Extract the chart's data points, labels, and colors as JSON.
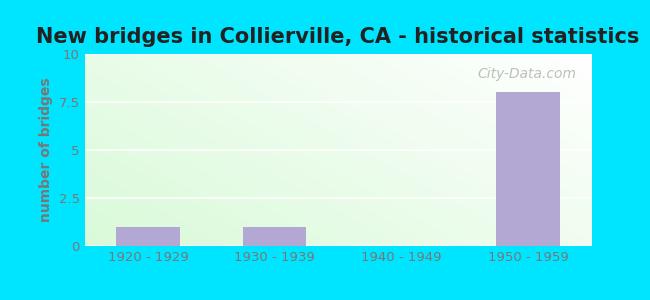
{
  "title": "New bridges in Collierville, CA - historical statistics",
  "categories": [
    "1920 - 1929",
    "1930 - 1939",
    "1940 - 1949",
    "1950 - 1959"
  ],
  "values": [
    1,
    1,
    0,
    8
  ],
  "bar_color": "#b3a8d4",
  "ylabel": "number of bridges",
  "ylim": [
    0,
    10
  ],
  "yticks": [
    0,
    2.5,
    5,
    7.5,
    10
  ],
  "background_outer": "#00e5ff",
  "title_fontsize": 15,
  "title_color": "#222222",
  "axis_label_color": "#777777",
  "tick_label_color": "#777777",
  "watermark": "City-Data.com",
  "watermark_color": "#aaaaaa",
  "grid_color": "#ffffff",
  "bg_top": "#f4fce8",
  "bg_bottom": "#d8edd8"
}
